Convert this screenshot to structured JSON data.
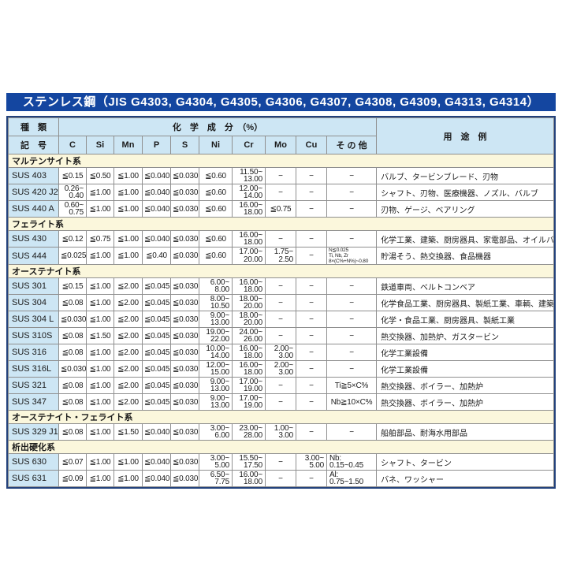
{
  "title": "ステンレス鋼（JIS G4303, G4304, G4305, G4306, G4307, G4308, G4309, G4313, G4314）",
  "colors": {
    "title_bar_bg": "#1446a0",
    "title_text": "#ffffff",
    "outer_border": "#23427c",
    "header_bg": "#cde6f4",
    "code_col_bg": "#cde6f4",
    "section_band_bg": "#fbf7dc",
    "cell_border": "#8f8f8f",
    "body_text": "#1b1b1b"
  },
  "table": {
    "header": {
      "kind_top": "種　類",
      "kind_bottom": "記　号",
      "chem": "化　学　成　分　（%）",
      "elements": [
        "C",
        "Si",
        "Mn",
        "P",
        "S",
        "Ni",
        "Cr",
        "Mo",
        "Cu",
        "そ の 他"
      ],
      "usage": "用　途　例"
    },
    "sections": [
      {
        "name": "マルテンサイト系",
        "rows": [
          {
            "code": "SUS 403",
            "c": "≦0.15",
            "si": "≦0.50",
            "mn": "≦1.00",
            "p": "≦0.040",
            "s": "≦0.030",
            "ni": "≦0.60",
            "cr": "11.50~\n13.00",
            "mo": "−",
            "cu": "−",
            "other": "−",
            "use": "バルブ、タービンブレード、刃物"
          },
          {
            "code": "SUS 420 J2",
            "c": "0.26~\n0.40",
            "si": "≦1.00",
            "mn": "≦1.00",
            "p": "≦0.040",
            "s": "≦0.030",
            "ni": "≦0.60",
            "cr": "12.00~\n14.00",
            "mo": "−",
            "cu": "−",
            "other": "−",
            "use": "シャフト、刃物、医療機器、ノズル、バルブ"
          },
          {
            "code": "SUS 440 A",
            "c": "0.60~\n0.75",
            "si": "≦1.00",
            "mn": "≦1.00",
            "p": "≦0.040",
            "s": "≦0.030",
            "ni": "≦0.60",
            "cr": "16.00~\n18.00",
            "mo": "≦0.75",
            "cu": "−",
            "other": "−",
            "use": "刃物、ゲージ、ベアリング"
          }
        ]
      },
      {
        "name": "フェライト系",
        "rows": [
          {
            "code": "SUS 430",
            "c": "≦0.12",
            "si": "≦0.75",
            "mn": "≦1.00",
            "p": "≦0.040",
            "s": "≦0.030",
            "ni": "≦0.60",
            "cr": "16.00~\n18.00",
            "mo": "−",
            "cu": "−",
            "other": "−",
            "use": "化学工業、建築、厨房器具、家電部品、オイルバーナー部品"
          },
          {
            "code": "SUS 444",
            "c": "≦0.025",
            "si": "≦1.00",
            "mn": "≦1.00",
            "p": "≦0.40",
            "s": "≦0.030",
            "ni": "≦0.60",
            "cr": "17.00~\n20.00",
            "mo": "1.75~\n2.50",
            "cu": "−",
            "other": "N≦0.025\nTi, Nb, Zr\n8×(C%+N%)~0.80",
            "other_small": true,
            "use": "貯湯そう、熱交換器、食品機器"
          }
        ]
      },
      {
        "name": "オーステナイト系",
        "rows": [
          {
            "code": "SUS 301",
            "c": "≦0.15",
            "si": "≦1.00",
            "mn": "≦2.00",
            "p": "≦0.045",
            "s": "≦0.030",
            "ni": "6.00~\n8.00",
            "cr": "16.00~\n18.00",
            "mo": "−",
            "cu": "−",
            "other": "−",
            "use": "鉄道車両、ベルトコンベア"
          },
          {
            "code": "SUS 304",
            "c": "≦0.08",
            "si": "≦1.00",
            "mn": "≦2.00",
            "p": "≦0.045",
            "s": "≦0.030",
            "ni": "8.00~\n10.50",
            "cr": "18.00~\n20.00",
            "mo": "−",
            "cu": "−",
            "other": "−",
            "use": "化学食品工業、厨房器具、製紙工業、車輌、建築"
          },
          {
            "code": "SUS 304 L",
            "c": "≦0.030",
            "si": "≦1.00",
            "mn": "≦2.00",
            "p": "≦0.045",
            "s": "≦0.030",
            "ni": "9.00~\n13.00",
            "cr": "18.00~\n20.00",
            "mo": "−",
            "cu": "−",
            "other": "−",
            "use": "化学・食品工業、厨房器具、製紙工業"
          },
          {
            "code": "SUS 310S",
            "c": "≦0.08",
            "si": "≦1.50",
            "mn": "≦2.00",
            "p": "≦0.045",
            "s": "≦0.030",
            "ni": "19.00~\n22.00",
            "cr": "24.00~\n26.00",
            "mo": "−",
            "cu": "−",
            "other": "−",
            "use": "熱交換器、加熱炉、ガスタービン"
          },
          {
            "code": "SUS 316",
            "c": "≦0.08",
            "si": "≦1.00",
            "mn": "≦2.00",
            "p": "≦0.045",
            "s": "≦0.030",
            "ni": "10.00~\n14.00",
            "cr": "16.00~\n18.00",
            "mo": "2.00~\n3.00",
            "cu": "−",
            "other": "−",
            "use": "化学工業設備"
          },
          {
            "code": "SUS 316L",
            "c": "≦0.030",
            "si": "≦1.00",
            "mn": "≦2.00",
            "p": "≦0.045",
            "s": "≦0.030",
            "ni": "12.00~\n15.00",
            "cr": "16.00~\n18.00",
            "mo": "2.00~\n3.00",
            "cu": "−",
            "other": "−",
            "use": "化学工業設備"
          },
          {
            "code": "SUS 321",
            "c": "≦0.08",
            "si": "≦1.00",
            "mn": "≦2.00",
            "p": "≦0.045",
            "s": "≦0.030",
            "ni": "9.00~\n13.00",
            "cr": "17.00~\n19.00",
            "mo": "−",
            "cu": "−",
            "other": "Ti≧5×C%",
            "use": "熱交換器、ボイラー、加熱炉"
          },
          {
            "code": "SUS 347",
            "c": "≦0.08",
            "si": "≦1.00",
            "mn": "≦2.00",
            "p": "≦0.045",
            "s": "≦0.030",
            "ni": "9.00~\n13.00",
            "cr": "17.00~\n19.00",
            "mo": "−",
            "cu": "−",
            "other": "Nb≧10×C%",
            "use": "熱交換器、ボイラー、加熱炉"
          }
        ]
      },
      {
        "name": "オーステナイト・フェライト系",
        "rows": [
          {
            "code": "SUS 329 J1",
            "c": "≦0.08",
            "si": "≦1.00",
            "mn": "≦1.50",
            "p": "≦0.040",
            "s": "≦0.030",
            "ni": "3.00~\n6.00",
            "cr": "23.00~\n28.00",
            "mo": "1.00~\n3.00",
            "cu": "−",
            "other": "−",
            "use": "船舶部品、耐海水用部品"
          }
        ]
      },
      {
        "name": "析出硬化系",
        "rows": [
          {
            "code": "SUS 630",
            "c": "≦0.07",
            "si": "≦1.00",
            "mn": "≦1.00",
            "p": "≦0.040",
            "s": "≦0.030",
            "ni": "3.00~\n5.00",
            "cr": "15.50~\n17.50",
            "mo": "−",
            "cu": "3.00~\n5.00",
            "other": "Nb:\n0.15~0.45",
            "use": "シャフト、タービン"
          },
          {
            "code": "SUS 631",
            "c": "≦0.09",
            "si": "≦1.00",
            "mn": "≦1.00",
            "p": "≦0.040",
            "s": "≦0.030",
            "ni": "6.50~\n7.75",
            "cr": "16.00~\n18.00",
            "mo": "−",
            "cu": "−",
            "other": "Al:\n0.75~1.50",
            "use": "バネ、ワッシャー"
          }
        ]
      }
    ]
  }
}
